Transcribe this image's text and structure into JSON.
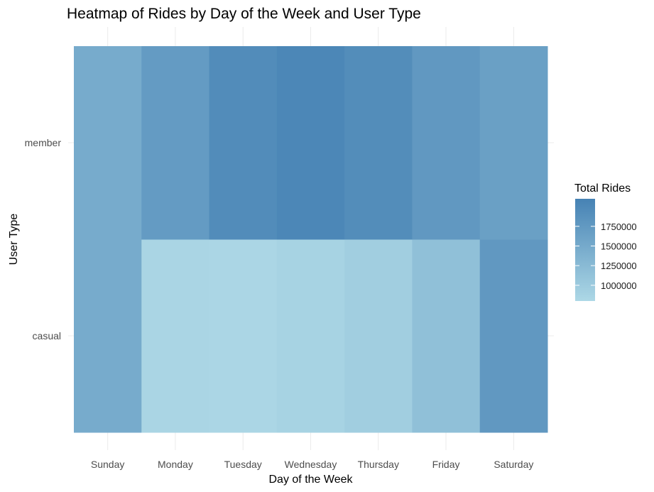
{
  "chart_data": {
    "type": "heatmap",
    "title": "Heatmap of Rides by Day of the Week and User Type",
    "xlabel": "Day of the Week",
    "ylabel": "User Type",
    "x": [
      "Sunday",
      "Monday",
      "Tuesday",
      "Wednesday",
      "Thursday",
      "Friday",
      "Saturday"
    ],
    "y": [
      "casual",
      "member"
    ],
    "values": [
      [
        1480000,
        840000,
        830000,
        870000,
        950000,
        1170000,
        1760000
      ],
      [
        1480000,
        1720000,
        1950000,
        2030000,
        1940000,
        1760000,
        1650000
      ]
    ],
    "legend": {
      "title": "Total Rides",
      "ticks": [
        1000000,
        1250000,
        1500000,
        1750000
      ],
      "range": [
        800000,
        2100000
      ],
      "low_color": "#add8e6",
      "high_color": "#4682b4"
    },
    "grid": true,
    "legend_position": "right"
  }
}
